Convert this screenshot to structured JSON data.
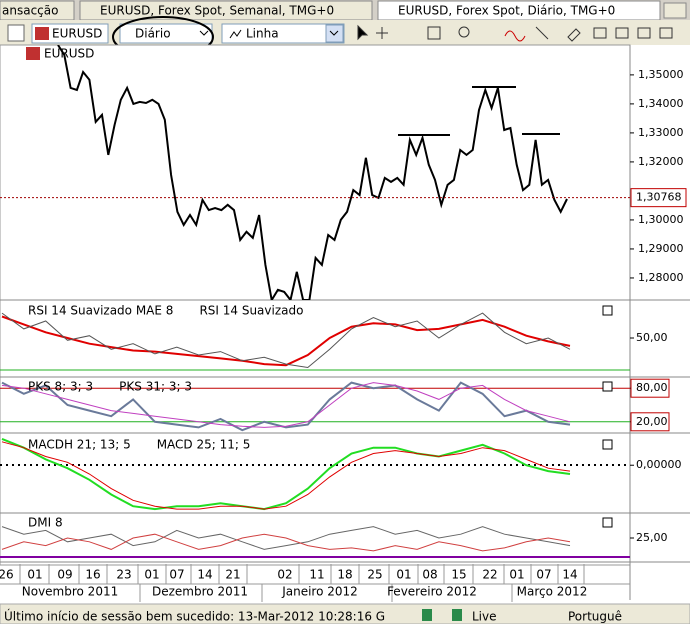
{
  "tabs": [
    "ansacção",
    "EURUSD, Forex Spot, Semanal, TMG+0",
    "EURUSD, Forex Spot, Diário, TMG+0"
  ],
  "toolbar": {
    "symbol": "EURUSD",
    "period": "Diário",
    "chart_type": "Linha"
  },
  "chart": {
    "price": {
      "name": "EURUSD",
      "color": "#000000",
      "values": [
        1.3603,
        1.3569,
        1.3455,
        1.3448,
        1.351,
        1.3483,
        1.3338,
        1.3362,
        1.3224,
        1.3328,
        1.3414,
        1.3455,
        1.34,
        1.3407,
        1.3403,
        1.3414,
        1.34,
        1.3345,
        1.3155,
        1.3028,
        1.2983,
        1.3017,
        1.2983,
        1.3069,
        1.3034,
        1.3041,
        1.3034,
        1.3052,
        1.3034,
        1.2931,
        1.2959,
        1.2938,
        1.3017,
        1.2845,
        1.2724,
        1.2759,
        1.2752,
        1.2724,
        1.2821,
        1.2724,
        1.2724,
        1.2869,
        1.2845,
        1.2948,
        1.2931,
        1.3,
        1.3028,
        1.3103,
        1.3086,
        1.3214,
        1.3086,
        1.3076,
        1.3145,
        1.3131,
        1.3145,
        1.3121,
        1.3276,
        1.3224,
        1.3283,
        1.319,
        1.3138,
        1.3052,
        1.3121,
        1.3138,
        1.3241,
        1.3224,
        1.3241,
        1.3379,
        1.3448,
        1.3386,
        1.3455,
        1.331,
        1.3317,
        1.319,
        1.3103,
        1.3121,
        1.3276,
        1.3121,
        1.3138,
        1.3069,
        1.3028,
        1.3072
      ],
      "ylim": [
        1.2724,
        1.3603
      ],
      "yticks": [
        {
          "value": 1.35,
          "label": "1,35000"
        },
        {
          "value": 1.34,
          "label": "1,34000"
        },
        {
          "value": 1.33,
          "label": "1,33000"
        },
        {
          "value": 1.32,
          "label": "1,32000"
        },
        {
          "value": 1.3,
          "label": "1,30000"
        },
        {
          "value": 1.29,
          "label": "1,29000"
        },
        {
          "value": 1.28,
          "label": "1,28000"
        }
      ],
      "last": {
        "value": 1.30768,
        "label": "1,30768"
      }
    },
    "rsi": {
      "ylim": [
        20,
        80
      ],
      "yticks": [
        {
          "value": 50,
          "label": "50,00"
        }
      ],
      "series": [
        {
          "name": "RSI 14 Suavizado MAE 8",
          "color": "#e00000",
          "values": [
            69,
            62,
            55,
            50,
            45,
            42,
            39,
            38,
            36,
            34,
            32,
            30,
            27,
            26,
            35,
            50,
            60,
            63,
            62,
            57,
            58,
            62,
            66,
            60,
            52,
            47,
            43
          ]
        },
        {
          "name": "RSI 14 Suavizado",
          "color": "#555555",
          "values": [
            72,
            58,
            65,
            48,
            52,
            40,
            45,
            36,
            42,
            35,
            38,
            30,
            33,
            27,
            24,
            40,
            58,
            68,
            60,
            65,
            50,
            62,
            72,
            55,
            45,
            50,
            40
          ]
        }
      ]
    },
    "pks": {
      "ylim": [
        0,
        100
      ],
      "yticks": [
        {
          "value": 80,
          "label": "80,00"
        },
        {
          "value": 20,
          "label": "20,00"
        }
      ],
      "series": [
        {
          "name": "PKS 8; 3; 3",
          "color": "#6a7a9a",
          "values": [
            90,
            70,
            85,
            50,
            40,
            30,
            60,
            20,
            15,
            10,
            25,
            5,
            20,
            10,
            15,
            60,
            90,
            80,
            85,
            60,
            40,
            90,
            70,
            30,
            40,
            20,
            15
          ]
        },
        {
          "name": "PKS 31; 3; 3",
          "color": "#c040c0",
          "values": [
            85,
            80,
            70,
            60,
            50,
            40,
            35,
            30,
            25,
            20,
            15,
            12,
            10,
            12,
            20,
            50,
            80,
            90,
            85,
            75,
            60,
            80,
            85,
            60,
            40,
            30,
            20
          ]
        }
      ]
    },
    "macd": {
      "ylim": [
        -0.016,
        0.01
      ],
      "yticks": [
        {
          "value": 0,
          "label": "0,00000"
        }
      ],
      "series": [
        {
          "name": "MACDH 21; 13; 5",
          "color": "#22dd22",
          "values": [
            0.009,
            0.006,
            0.002,
            -0.001,
            -0.005,
            -0.01,
            -0.014,
            -0.015,
            -0.014,
            -0.014,
            -0.013,
            -0.014,
            -0.015,
            -0.013,
            -0.008,
            -0.001,
            0.004,
            0.006,
            0.006,
            0.004,
            0.003,
            0.005,
            0.007,
            0.004,
            0.0,
            -0.002,
            -0.003
          ]
        },
        {
          "name": "MACD 25; 11; 5",
          "color": "#e00000",
          "values": [
            0.008,
            0.006,
            0.003,
            0.001,
            -0.003,
            -0.008,
            -0.012,
            -0.014,
            -0.015,
            -0.015,
            -0.014,
            -0.014,
            -0.015,
            -0.014,
            -0.01,
            -0.004,
            0.001,
            0.004,
            0.005,
            0.004,
            0.003,
            0.004,
            0.006,
            0.005,
            0.002,
            -0.001,
            -0.002
          ]
        }
      ]
    },
    "dmi": {
      "ylim": [
        0,
        50
      ],
      "yticks": [
        {
          "value": 25,
          "label": "25,00"
        }
      ],
      "series": [
        {
          "name": "DMI 8",
          "color": "#666666",
          "values": [
            40,
            30,
            35,
            20,
            25,
            30,
            15,
            20,
            35,
            25,
            30,
            20,
            10,
            15,
            20,
            30,
            35,
            40,
            30,
            35,
            25,
            30,
            40,
            30,
            25,
            20,
            15
          ]
        },
        {
          "color": "#d04040",
          "values": [
            10,
            20,
            15,
            25,
            20,
            10,
            25,
            30,
            20,
            10,
            15,
            25,
            30,
            25,
            15,
            10,
            12,
            8,
            15,
            10,
            20,
            15,
            8,
            12,
            20,
            25,
            20
          ]
        }
      ]
    },
    "days": [
      "26",
      "01",
      "09",
      "16",
      "23",
      "01",
      "07",
      "14",
      "21",
      "02",
      "11",
      "18",
      "25",
      "01",
      "08",
      "15",
      "22",
      "01",
      "07",
      "14"
    ],
    "months": [
      "Novembro 2011",
      "Dezembro 2011",
      "Janeiro 2012",
      "Fevereiro 2012",
      "Março 2012"
    ]
  },
  "status": {
    "message": "Último início de sessão bem sucedido: 13-Mar-2012 10:28:16 G",
    "connection": "Live",
    "language": "Portuguê"
  }
}
